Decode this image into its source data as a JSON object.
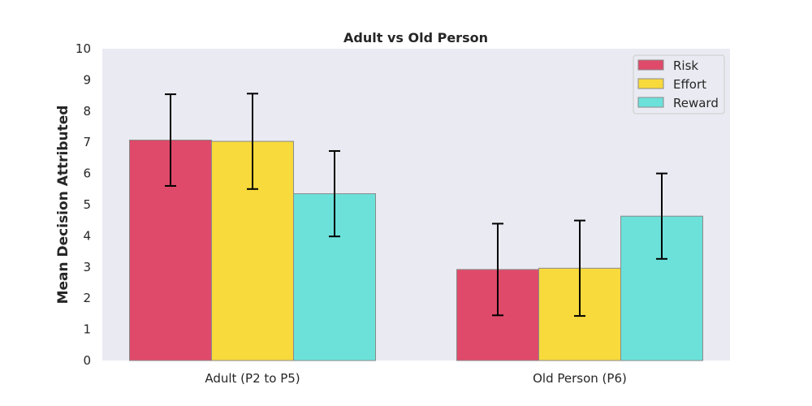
{
  "chart_data": {
    "type": "bar",
    "title": "Adult vs Old Person",
    "xlabel": "",
    "ylabel": "Mean Decision Attributed",
    "categories": [
      "Adult (P2 to P5)",
      "Old Person (P6)"
    ],
    "ylim": [
      0,
      10
    ],
    "yticks": [
      "0",
      "1",
      "2",
      "3",
      "4",
      "5",
      "6",
      "7",
      "8",
      "9",
      "10"
    ],
    "grid": false,
    "legend_position": "top-right",
    "series": [
      {
        "name": "Risk",
        "color": "#e04a6a",
        "values": [
          7.07,
          2.92
        ],
        "errors": [
          1.47,
          1.47
        ]
      },
      {
        "name": "Effort",
        "color": "#f8da3c",
        "values": [
          7.03,
          2.96
        ],
        "errors": [
          1.53,
          1.53
        ]
      },
      {
        "name": "Reward",
        "color": "#6be1da",
        "values": [
          5.35,
          4.63
        ],
        "errors": [
          1.37,
          1.37
        ]
      }
    ]
  }
}
